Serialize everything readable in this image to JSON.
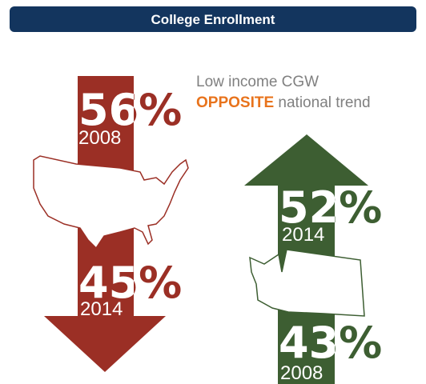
{
  "header": {
    "title": "College Enrollment"
  },
  "caption": {
    "line1": "Low income CGW",
    "highlight": "OPPOSITE",
    "rest": "national trend"
  },
  "national": {
    "start": {
      "value": "56%",
      "year": "2008"
    },
    "end": {
      "value": "45%",
      "year": "2014"
    }
  },
  "washington": {
    "end": {
      "value": "52%",
      "year": "2014"
    },
    "start": {
      "value": "43%",
      "year": "2008"
    }
  }
}
